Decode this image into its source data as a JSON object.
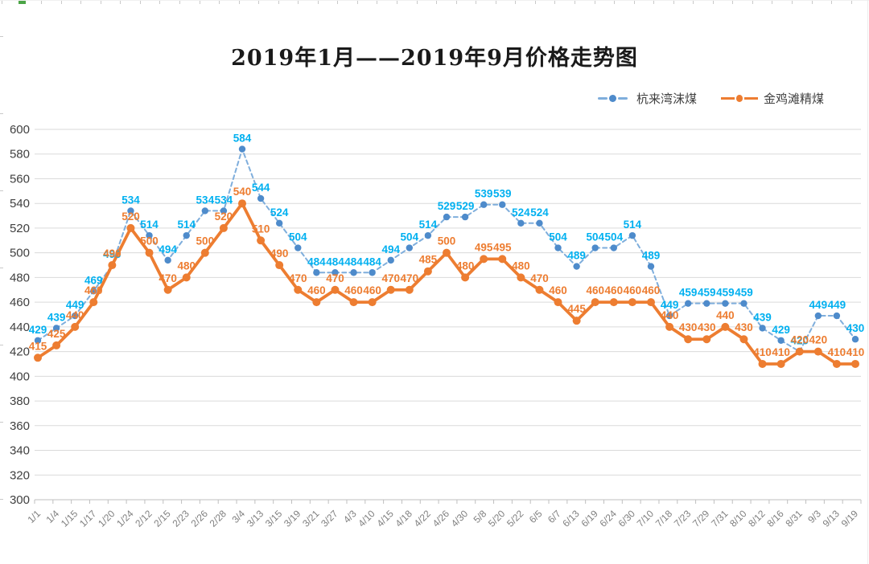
{
  "chart_data": {
    "type": "line",
    "title": "2019年1月——2019年9月价格走势图",
    "categories": [
      "1/1",
      "1/4",
      "1/15",
      "1/17",
      "1/20",
      "1/24",
      "2/12",
      "2/15",
      "2/23",
      "2/26",
      "2/28",
      "3/4",
      "3/13",
      "3/15",
      "3/19",
      "3/21",
      "3/27",
      "4/3",
      "4/10",
      "4/15",
      "4/18",
      "4/22",
      "4/26",
      "4/30",
      "5/8",
      "5/20",
      "5/22",
      "6/5",
      "6/7",
      "6/13",
      "6/19",
      "6/24",
      "6/30",
      "7/10",
      "7/18",
      "7/23",
      "7/29",
      "7/31",
      "8/10",
      "8/12",
      "8/16",
      "8/31",
      "9/3",
      "9/13",
      "9/19"
    ],
    "series": [
      {
        "name": "杭来湾沫煤",
        "line_style": "dashed",
        "line_color": "#7fAEDC",
        "marker_color": "#4e8bcb",
        "label_color": "#00b0f0",
        "values": [
          429,
          439,
          449,
          469,
          490,
          534,
          514,
          494,
          514,
          534,
          534,
          584,
          544,
          524,
          504,
          484,
          484,
          484,
          484,
          494,
          504,
          514,
          529,
          529,
          539,
          539,
          524,
          524,
          504,
          489,
          504,
          504,
          514,
          489,
          449,
          459,
          459,
          459,
          459,
          439,
          429,
          420,
          449,
          449,
          430
        ]
      },
      {
        "name": "金鸡滩精煤",
        "line_style": "solid",
        "line_color": "#ed7d31",
        "marker_color": "#ed7d31",
        "label_color": "#ed7d31",
        "values": [
          415,
          425,
          440,
          460,
          490,
          520,
          500,
          470,
          480,
          500,
          520,
          540,
          510,
          490,
          470,
          460,
          470,
          460,
          460,
          470,
          470,
          485,
          500,
          480,
          495,
          495,
          480,
          470,
          460,
          445,
          460,
          460,
          460,
          460,
          440,
          430,
          430,
          440,
          430,
          410,
          410,
          420,
          420,
          410,
          410
        ]
      }
    ],
    "ylim": [
      300,
      600
    ],
    "yticks": [
      300,
      320,
      340,
      360,
      380,
      400,
      420,
      440,
      460,
      480,
      500,
      520,
      540,
      560,
      580,
      600
    ],
    "grid": "horizontal",
    "legend_position": "top-right",
    "data_labels": true,
    "axis_colors": {
      "gridline": "#dadada",
      "axis_line": "#bfbfbf",
      "y_label": "#404040",
      "x_label": "#7f7f7f"
    }
  }
}
